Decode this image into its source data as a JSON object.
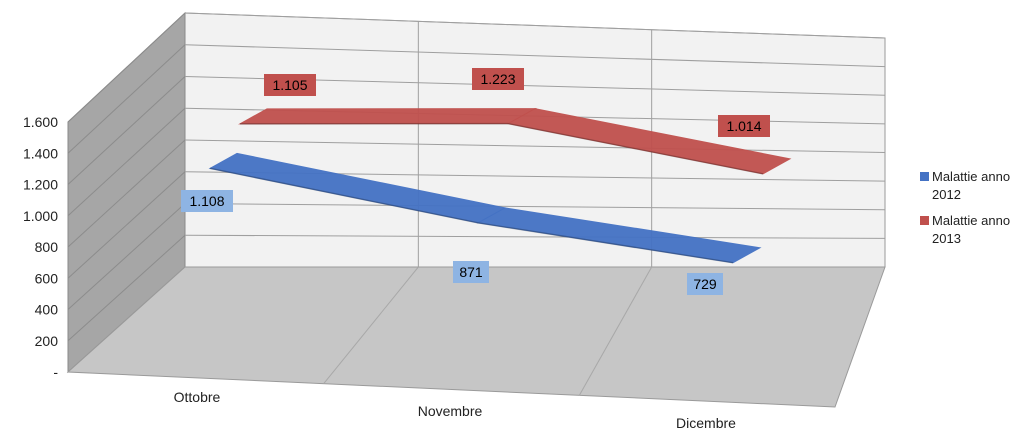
{
  "chart_data": {
    "type": "line",
    "style": "3d",
    "categories": [
      "Ottobre",
      "Novembre",
      "Dicembre"
    ],
    "series": [
      {
        "name": "Malattie anno 2012",
        "values": [
          1108,
          871,
          729
        ],
        "labels": [
          "1.108",
          "871",
          "729"
        ],
        "color": "#4472C4",
        "label_bg": "#8EB4E3",
        "text_color": "#000000"
      },
      {
        "name": "Malattie anno 2013",
        "values": [
          1105,
          1223,
          1014
        ],
        "labels": [
          "1.105",
          "1.223",
          "1.014"
        ],
        "color": "#C0504D",
        "label_bg": "#C0504D",
        "text_color": "#000000"
      }
    ],
    "y_ticks": [
      "-",
      "200",
      "400",
      "600",
      "800",
      "1.000",
      "1.200",
      "1.400",
      "1.600"
    ],
    "ylim": [
      0,
      1600
    ],
    "grid": true,
    "legend": "right",
    "title": "",
    "xlabel": "",
    "ylabel": ""
  }
}
